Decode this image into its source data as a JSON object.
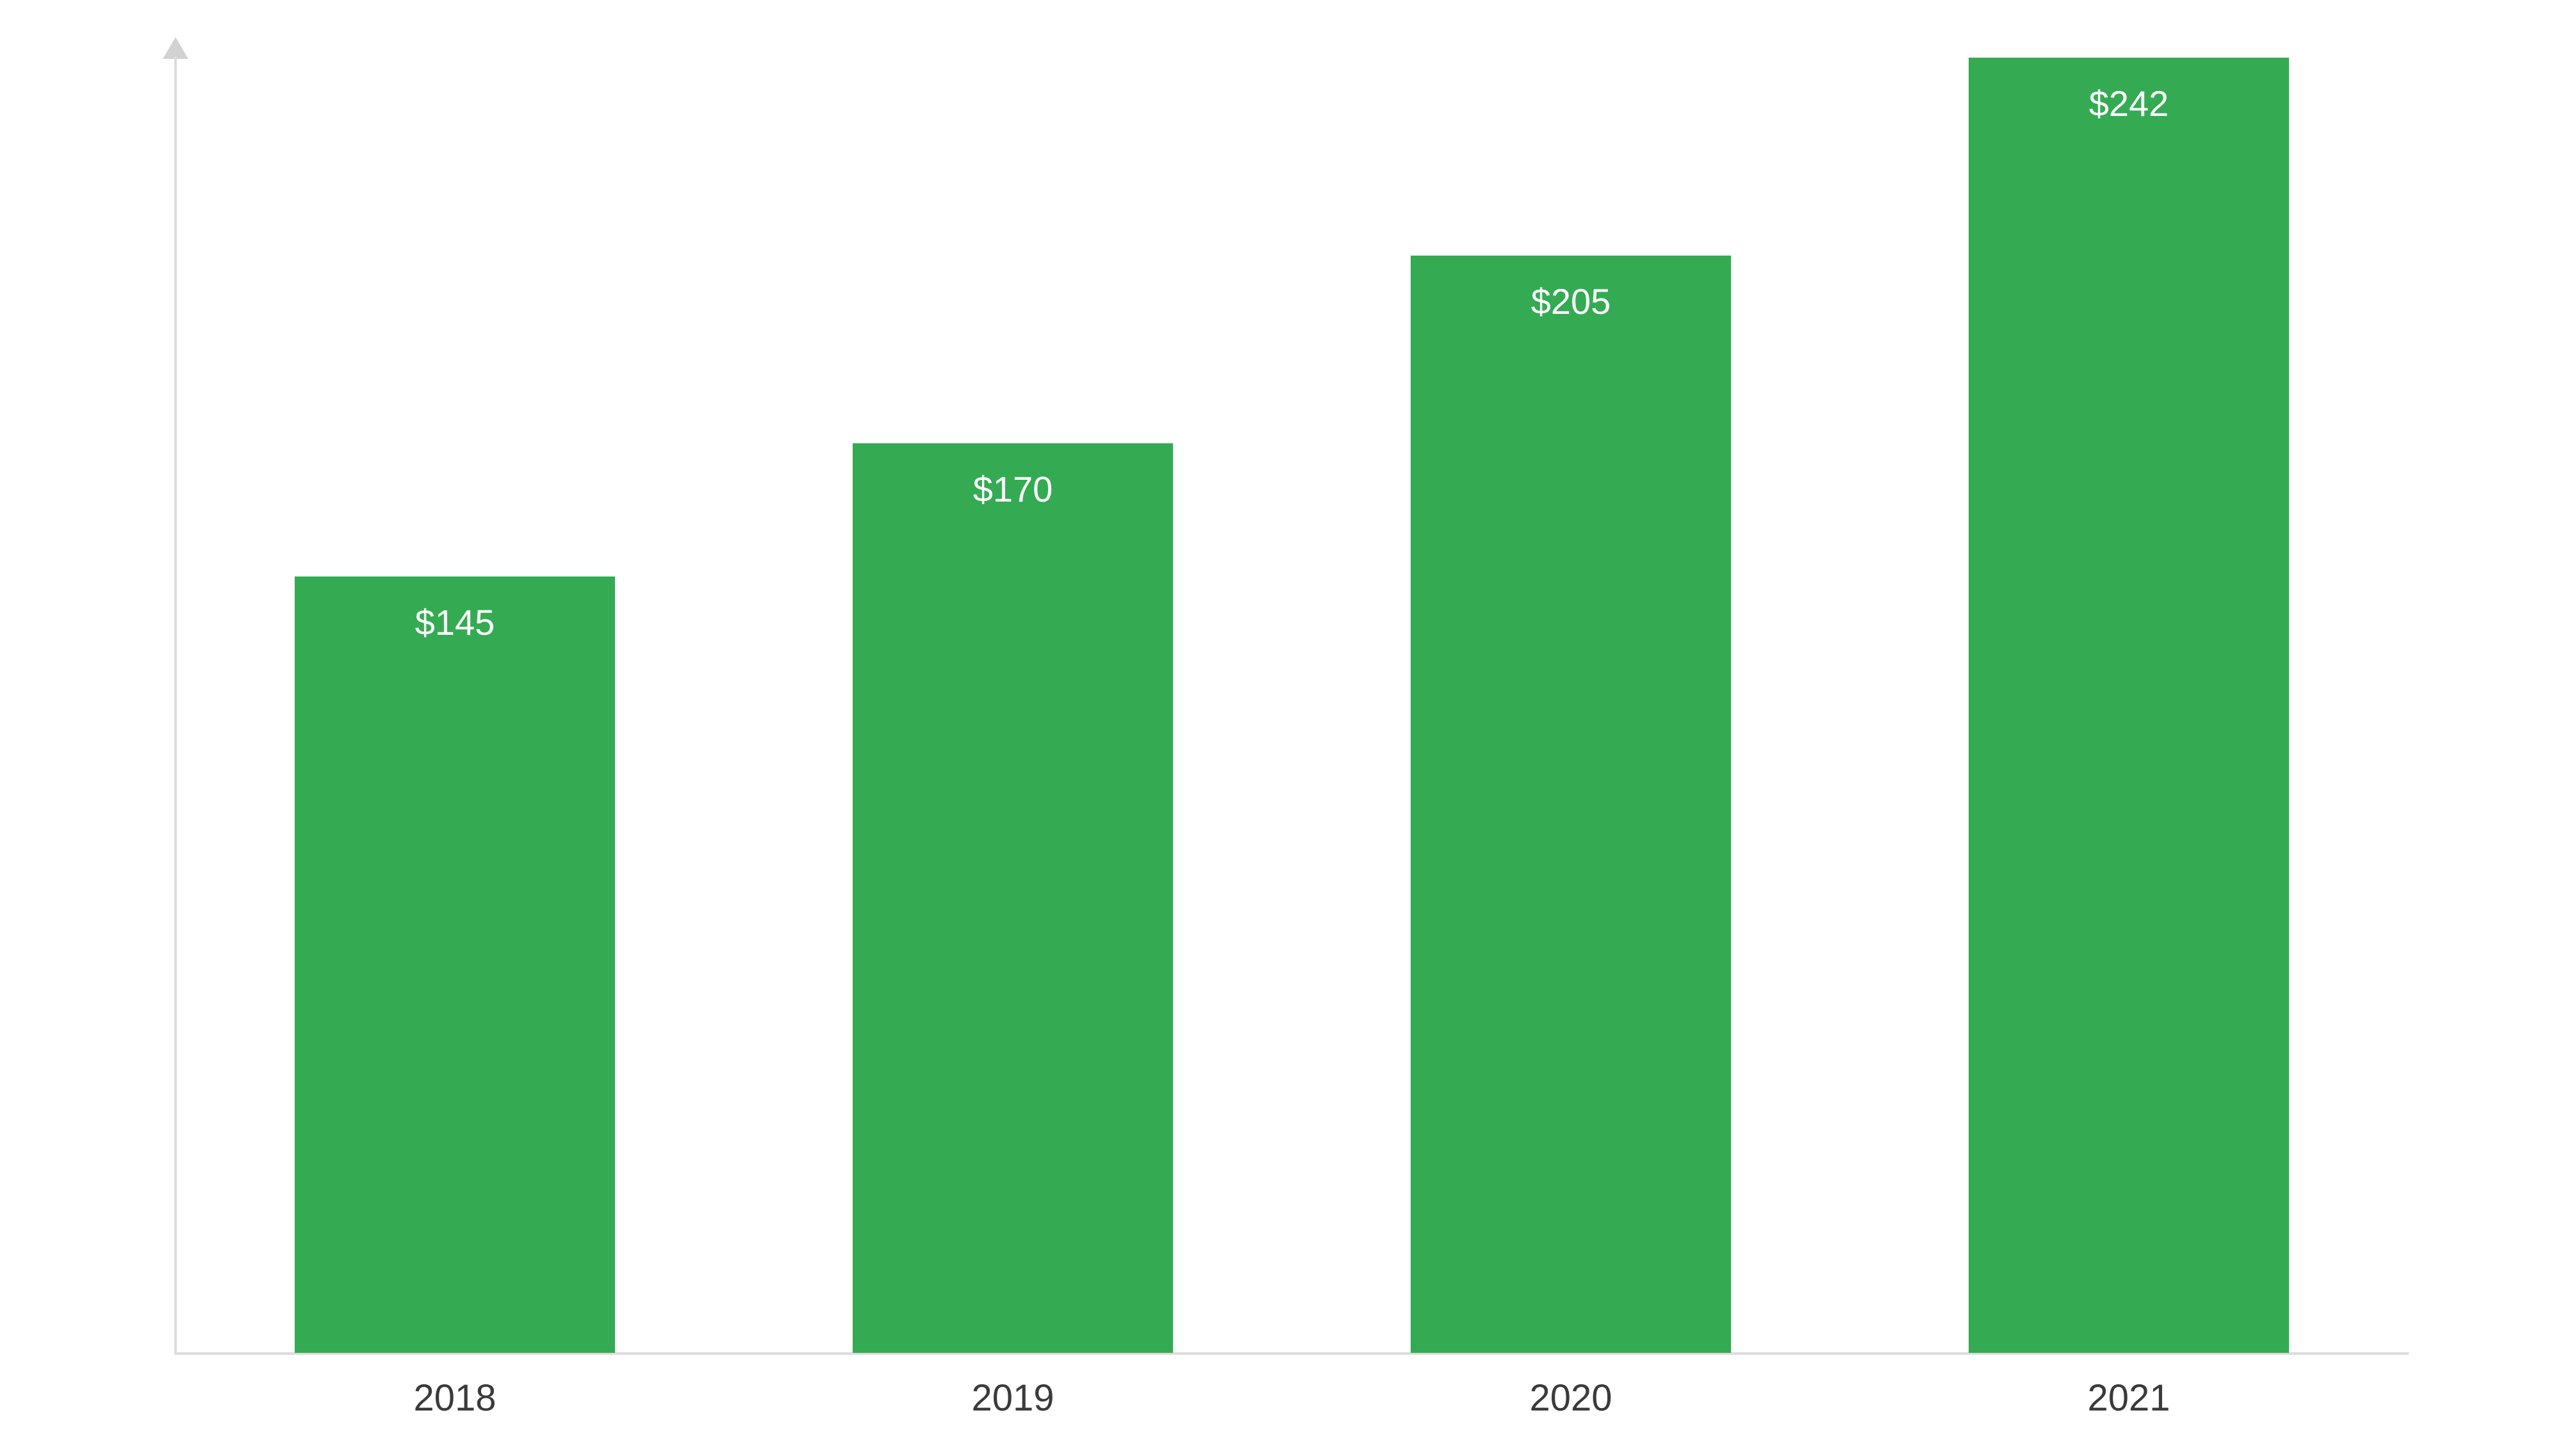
{
  "chart_data": {
    "type": "bar",
    "title": "",
    "xlabel": "",
    "ylabel": "",
    "categories": [
      "2018",
      "2019",
      "2020",
      "2021"
    ],
    "values": [
      145,
      170,
      205,
      242
    ],
    "value_labels": [
      "$145",
      "$170",
      "$205",
      "$242"
    ],
    "series_name": "",
    "ylim": [
      0,
      250
    ],
    "grid": false,
    "legend_position": "none",
    "value_prefix": "$",
    "colors": {
      "bar": "#34ab53",
      "bar_value_label": "#ffffff",
      "axis": "#dcdcdc",
      "axis_arrow": "#d2d2d2",
      "tick_label": "#3a3a3a",
      "background": "#ffffff"
    }
  }
}
